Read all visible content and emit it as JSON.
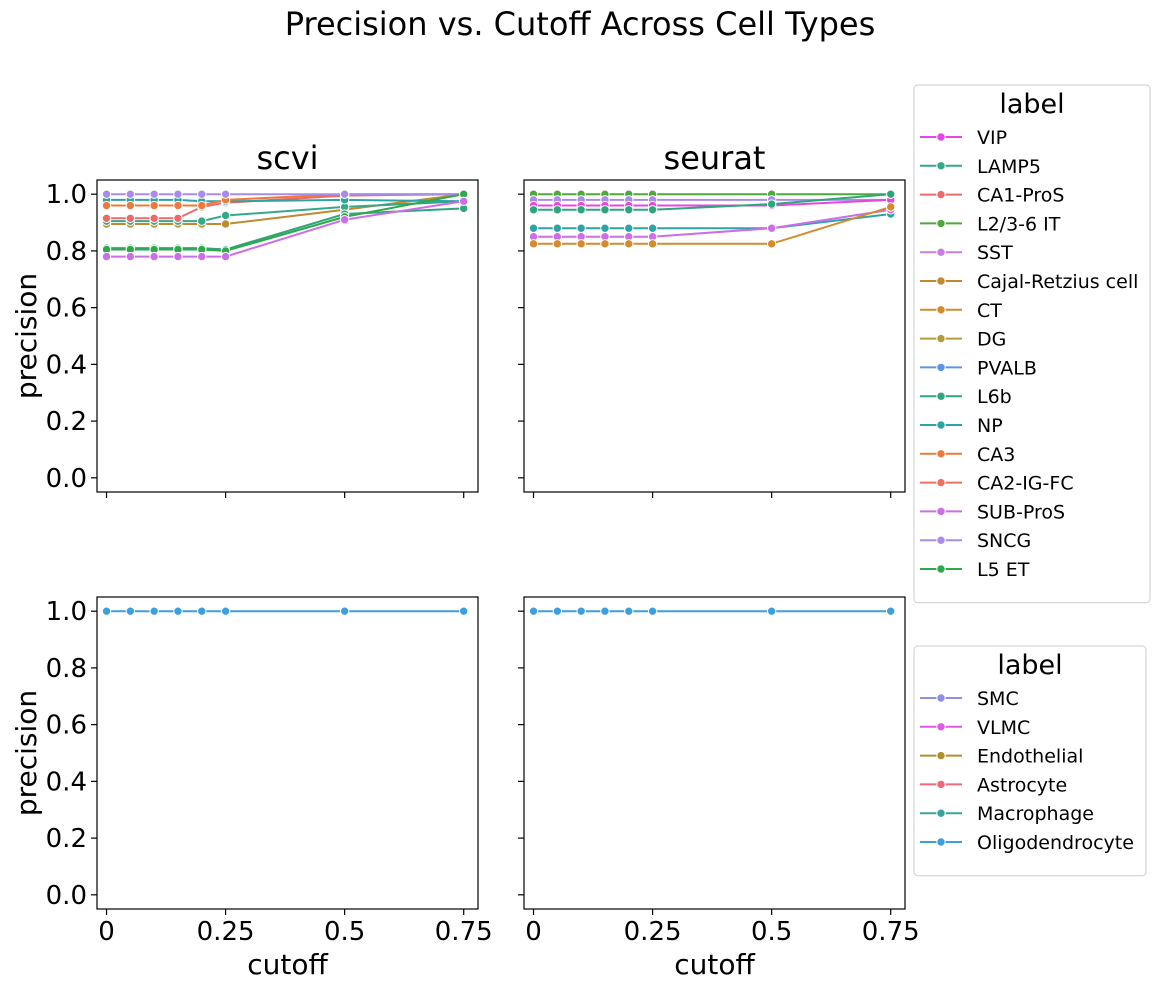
{
  "title": "Precision vs. Cutoff Across Cell Types",
  "chart_data": {
    "type": "line",
    "xlabel": "cutoff",
    "ylabel": "precision",
    "x_ticks": [
      0,
      0.25,
      0.5,
      0.75
    ],
    "x_tick_labels": [
      "0",
      "0.25",
      "0.5",
      "0.75"
    ],
    "xlim": [
      -0.02,
      0.78
    ],
    "y_ticks": [
      0,
      0.2,
      0.4,
      0.6,
      0.8,
      1.0
    ],
    "y_tick_labels": [
      "0.0",
      "0.2",
      "0.4",
      "0.6",
      "0.8",
      "1.0"
    ],
    "ylim": [
      -0.05,
      1.05
    ],
    "grid": false,
    "marker": "circle",
    "x": [
      0,
      0.05,
      0.1,
      0.15,
      0.2,
      0.25,
      0.5,
      0.75
    ],
    "legends": [
      {
        "title": "label",
        "placement": "right, top row",
        "entries": [
          {
            "name": "VIP",
            "color": "#e844e6"
          },
          {
            "name": "LAMP5",
            "color": "#34a989"
          },
          {
            "name": "CA1-ProS",
            "color": "#ec6a6a"
          },
          {
            "name": "L2/3-6 IT",
            "color": "#4fa83a"
          },
          {
            "name": "SST",
            "color": "#c77ee3"
          },
          {
            "name": "Cajal-Retzius cell",
            "color": "#c08b30"
          },
          {
            "name": "CT",
            "color": "#d48a2d"
          },
          {
            "name": "DG",
            "color": "#b59b3a"
          },
          {
            "name": "PVALB",
            "color": "#5b95e3"
          },
          {
            "name": "L6b",
            "color": "#2fa67a"
          },
          {
            "name": "NP",
            "color": "#2ea3a6"
          },
          {
            "name": "CA3",
            "color": "#ec7a3a"
          },
          {
            "name": "CA2-IG-FC",
            "color": "#ee7060"
          },
          {
            "name": "SUB-ProS",
            "color": "#cc6ee8"
          },
          {
            "name": "SNCG",
            "color": "#a98be8"
          },
          {
            "name": "L5 ET",
            "color": "#2ea84a"
          }
        ]
      },
      {
        "title": "label",
        "placement": "right, bottom row",
        "entries": [
          {
            "name": "SMC",
            "color": "#8f8ee8"
          },
          {
            "name": "VLMC",
            "color": "#e259e6"
          },
          {
            "name": "Endothelial",
            "color": "#b08f2c"
          },
          {
            "name": "Astrocyte",
            "color": "#ec6a7c"
          },
          {
            "name": "Macrophage",
            "color": "#3aa3a0"
          },
          {
            "name": "Oligodendrocyte",
            "color": "#3b9fe0"
          }
        ]
      }
    ],
    "panels": [
      {
        "title": "scvi",
        "row": 0,
        "col": 0,
        "show_xlabel": false,
        "show_ylabel": true,
        "show_xticklabels": false,
        "show_yticklabels": true,
        "series": [
          {
            "name": "Cajal-Retzius cell",
            "color": "#c08b30",
            "values": [
              0.895,
              0.895,
              0.895,
              0.895,
              0.895,
              0.895,
              0.945,
              1.0
            ]
          },
          {
            "name": "LAMP5",
            "color": "#34a989",
            "values": [
              0.905,
              0.905,
              0.905,
              0.905,
              0.905,
              0.925,
              0.955,
              0.975
            ]
          },
          {
            "name": "CA1-ProS",
            "color": "#ec6a6a",
            "values": [
              0.915,
              0.915,
              0.915,
              0.915,
              0.955,
              0.97,
              0.995,
              1.0
            ]
          },
          {
            "name": "NP",
            "color": "#2ea3a6",
            "values": [
              0.98,
              0.98,
              0.98,
              0.98,
              0.975,
              0.975,
              0.98,
              0.975
            ]
          },
          {
            "name": "CA3",
            "color": "#ec7a3a",
            "values": [
              0.96,
              0.96,
              0.96,
              0.96,
              0.96,
              0.98,
              1.0,
              1.0
            ]
          },
          {
            "name": "SNCG",
            "color": "#a98be8",
            "values": [
              1.0,
              1.0,
              1.0,
              1.0,
              1.0,
              1.0,
              1.0,
              1.0
            ]
          },
          {
            "name": "L6b",
            "color": "#2fa67a",
            "values": [
              0.81,
              0.81,
              0.81,
              0.81,
              0.81,
              0.805,
              0.93,
              0.95
            ]
          },
          {
            "name": "L5 ET",
            "color": "#2ea84a",
            "values": [
              0.805,
              0.805,
              0.805,
              0.805,
              0.805,
              0.8,
              0.92,
              1.0
            ]
          },
          {
            "name": "SUB-ProS",
            "color": "#cc6ee8",
            "values": [
              0.78,
              0.78,
              0.78,
              0.78,
              0.78,
              0.78,
              0.91,
              0.975
            ]
          }
        ]
      },
      {
        "title": "seurat",
        "row": 0,
        "col": 1,
        "show_xlabel": false,
        "show_ylabel": false,
        "show_xticklabels": false,
        "show_yticklabels": false,
        "series": [
          {
            "name": "L2/3-6 IT",
            "color": "#4fa83a",
            "values": [
              1.0,
              1.0,
              1.0,
              1.0,
              1.0,
              1.0,
              1.0,
              1.0
            ]
          },
          {
            "name": "SNCG",
            "color": "#a98be8",
            "values": [
              0.98,
              0.98,
              0.98,
              0.98,
              0.98,
              0.98,
              0.98,
              0.98
            ]
          },
          {
            "name": "VIP",
            "color": "#e844e6",
            "values": [
              0.96,
              0.96,
              0.96,
              0.96,
              0.96,
              0.96,
              0.96,
              0.98
            ]
          },
          {
            "name": "L6b",
            "color": "#2fa67a",
            "values": [
              0.945,
              0.945,
              0.945,
              0.945,
              0.945,
              0.945,
              0.965,
              1.0
            ]
          },
          {
            "name": "NP",
            "color": "#2ea3a6",
            "values": [
              0.88,
              0.88,
              0.88,
              0.88,
              0.88,
              0.88,
              0.88,
              0.93
            ]
          },
          {
            "name": "SUB-ProS",
            "color": "#cc6ee8",
            "values": [
              0.85,
              0.85,
              0.85,
              0.85,
              0.85,
              0.85,
              0.88,
              0.945
            ]
          },
          {
            "name": "CT",
            "color": "#d48a2d",
            "values": [
              0.825,
              0.825,
              0.825,
              0.825,
              0.825,
              0.825,
              0.825,
              0.955
            ]
          }
        ]
      },
      {
        "title": "",
        "row": 1,
        "col": 0,
        "show_xlabel": true,
        "show_ylabel": true,
        "show_xticklabels": true,
        "show_yticklabels": true,
        "series": [
          {
            "name": "Oligodendrocyte",
            "color": "#3b9fe0",
            "values": [
              1.0,
              1.0,
              1.0,
              1.0,
              1.0,
              1.0,
              1.0,
              1.0
            ]
          }
        ]
      },
      {
        "title": "",
        "row": 1,
        "col": 1,
        "show_xlabel": true,
        "show_ylabel": false,
        "show_xticklabels": true,
        "show_yticklabels": false,
        "series": [
          {
            "name": "Oligodendrocyte",
            "color": "#3b9fe0",
            "values": [
              1.0,
              1.0,
              1.0,
              1.0,
              1.0,
              1.0,
              1.0,
              1.0
            ]
          }
        ]
      }
    ]
  }
}
